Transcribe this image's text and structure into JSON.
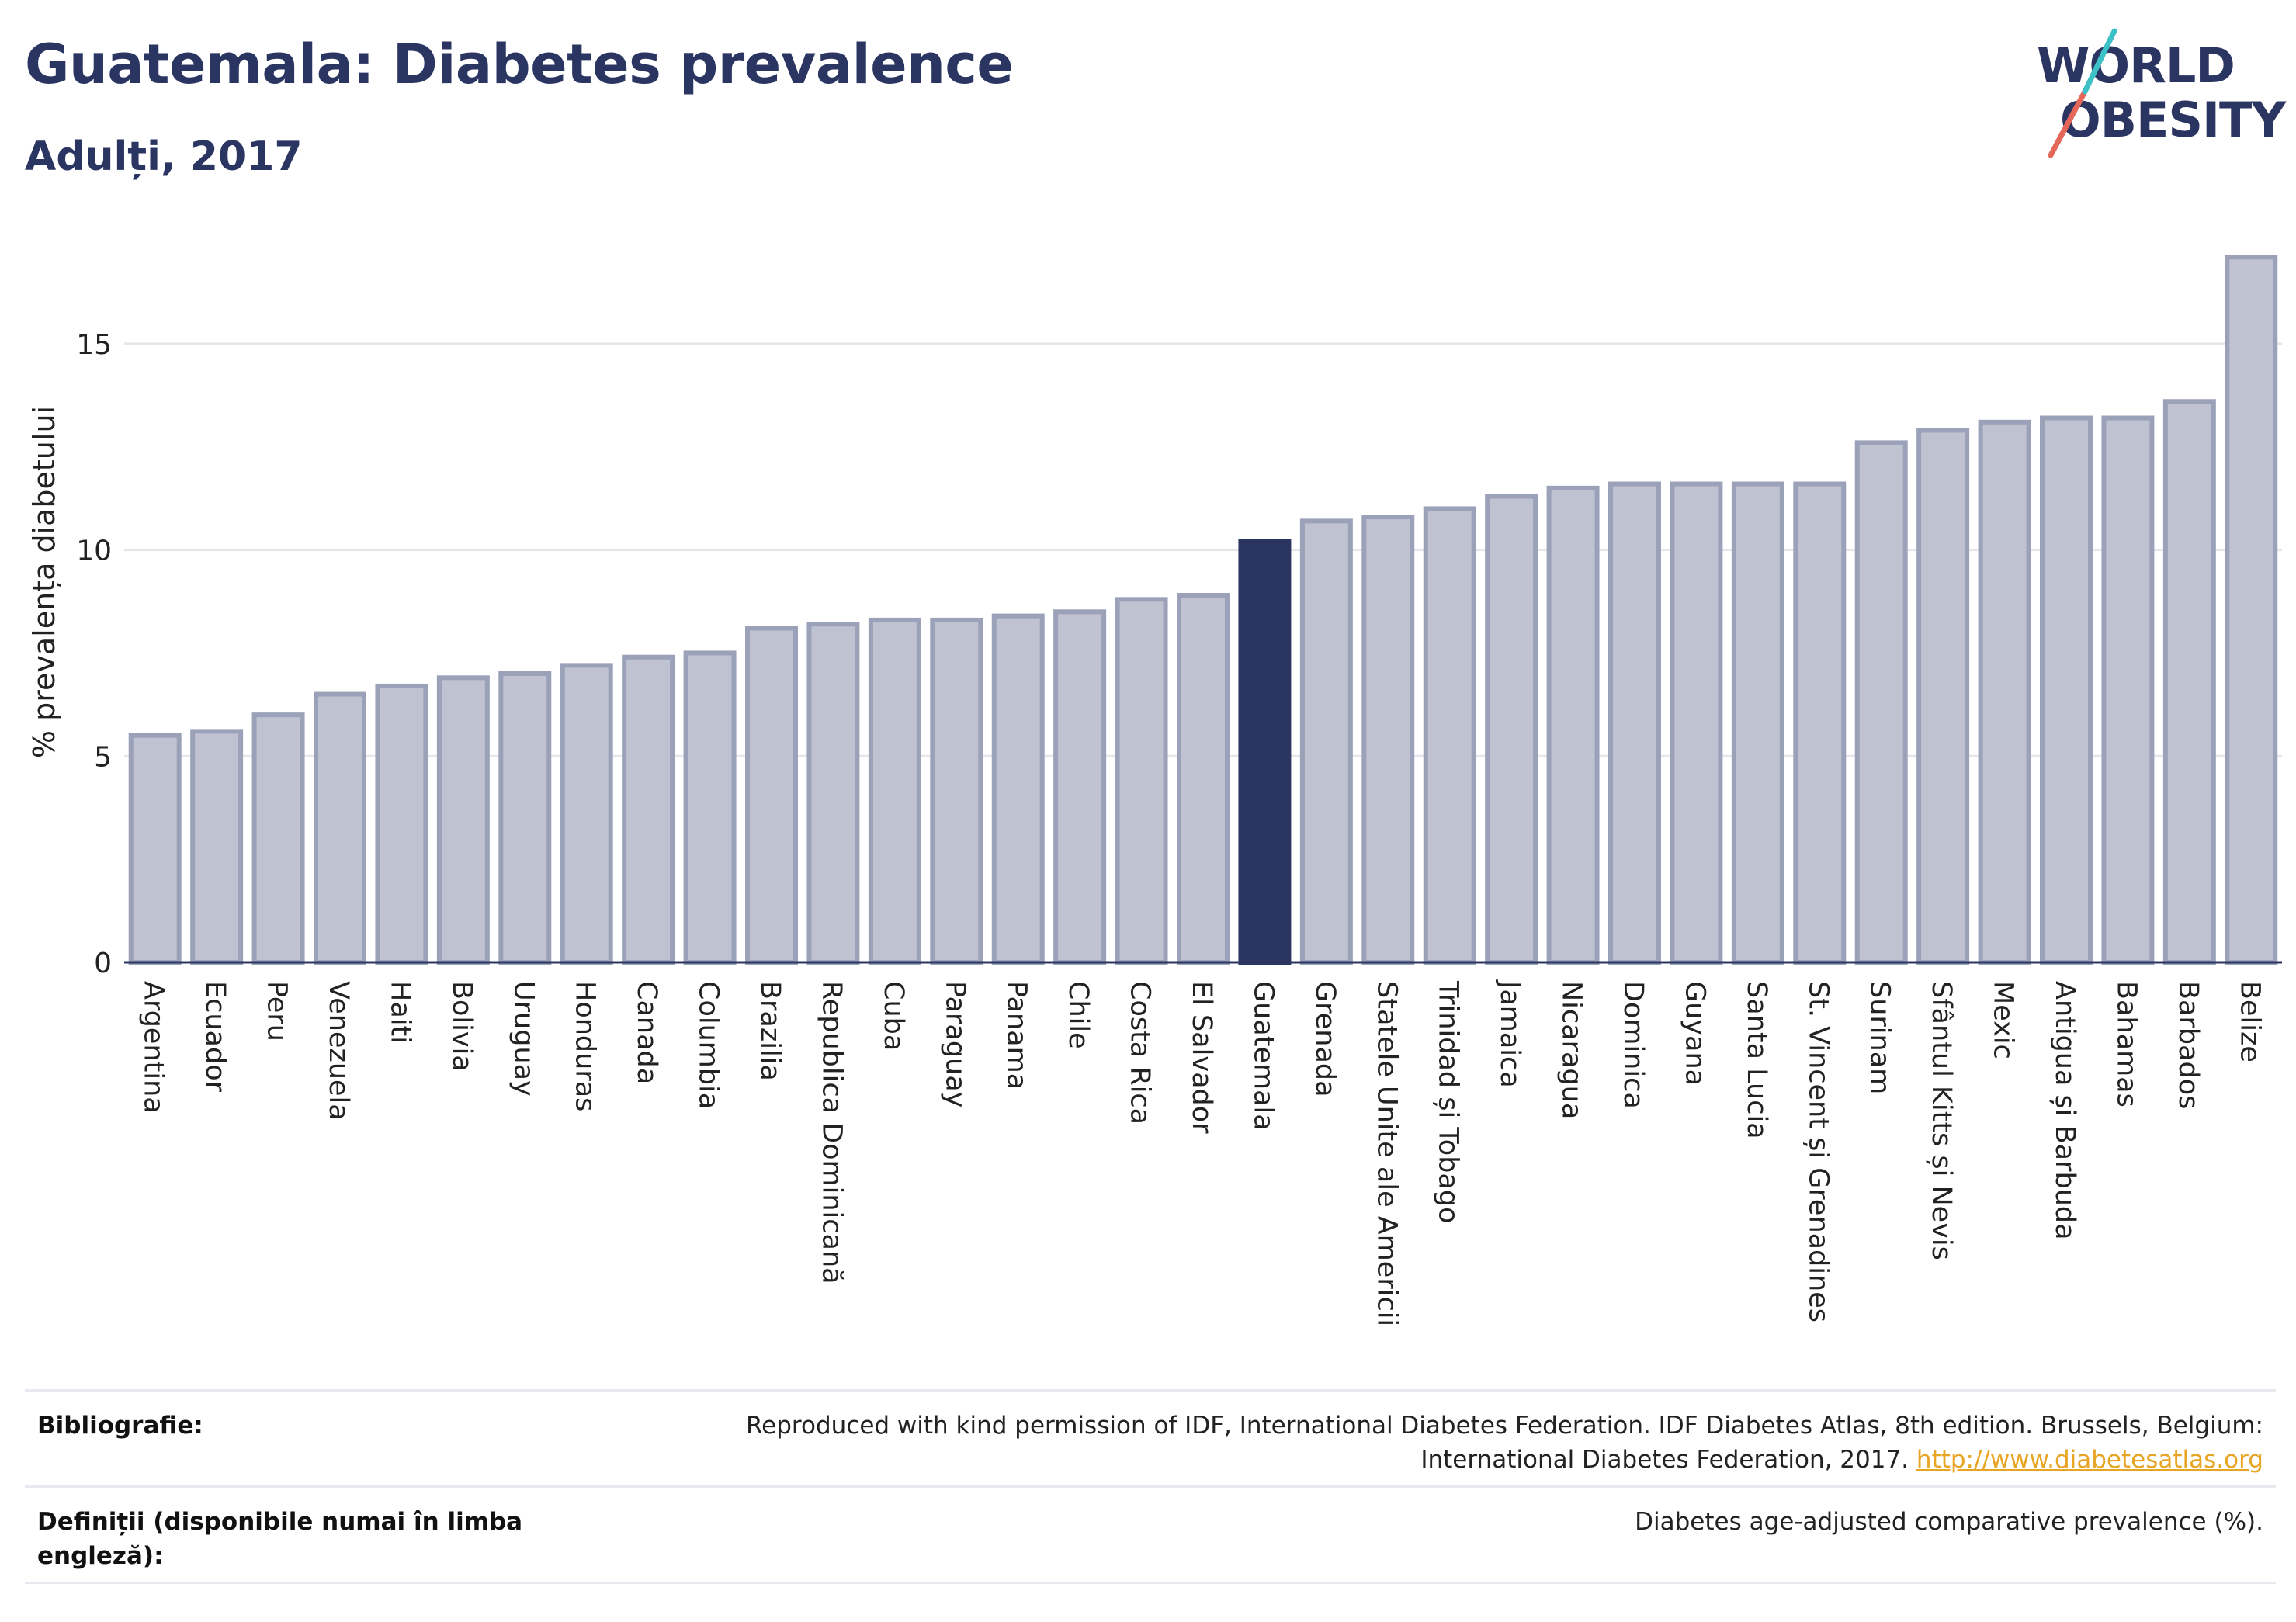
{
  "header": {
    "title": "Guatemala: Diabetes prevalence",
    "subtitle": "Adulți, 2017"
  },
  "logo": {
    "line1": "WORLD",
    "line2": "OBESITY",
    "accent_colors": [
      "#3cc1c6",
      "#e5675a"
    ]
  },
  "colors": {
    "bar": "#bfc3d1",
    "bar_border": "#9aa1b8",
    "highlight": "#2b3561",
    "grid": "#e6e6ea",
    "text": "#2b3561"
  },
  "chart_data": {
    "type": "bar",
    "title": "Guatemala: Diabetes prevalence",
    "subtitle": "Adulți, 2017",
    "ylabel": "% prevalența diabetului",
    "xlabel": "",
    "ylim": [
      0,
      17.5
    ],
    "yticks": [
      0,
      5,
      10,
      15
    ],
    "grid": true,
    "highlight": "Guatemala",
    "categories": [
      "Argentina",
      "Ecuador",
      "Peru",
      "Venezuela",
      "Haiti",
      "Bolivia",
      "Uruguay",
      "Honduras",
      "Canada",
      "Columbia",
      "Brazilia",
      "Republica Dominicană",
      "Cuba",
      "Paraguay",
      "Panama",
      "Chile",
      "Costa Rica",
      "El Salvador",
      "Guatemala",
      "Grenada",
      "Statele Unite ale Americii",
      "Trinidad și Tobago",
      "Jamaica",
      "Nicaragua",
      "Dominica",
      "Guyana",
      "Santa Lucia",
      "St. Vincent și Grenadines",
      "Surinam",
      "Sfântul Kitts și Nevis",
      "Mexic",
      "Antigua și Barbuda",
      "Bahamas",
      "Barbados",
      "Belize"
    ],
    "values": [
      5.5,
      5.6,
      6.0,
      6.5,
      6.7,
      6.9,
      7.0,
      7.2,
      7.4,
      7.5,
      8.1,
      8.2,
      8.3,
      8.3,
      8.4,
      8.5,
      8.8,
      8.9,
      10.2,
      10.7,
      10.8,
      11.0,
      11.3,
      11.5,
      11.6,
      11.6,
      11.6,
      11.6,
      12.6,
      12.9,
      13.1,
      13.2,
      13.2,
      13.6,
      17.1
    ]
  },
  "footer": {
    "bibliography_label": "Bibliografie:",
    "bibliography_text_1": "Reproduced with kind permission of IDF, International Diabetes Federation. IDF Diabetes Atlas, 8th edition. Brussels, Belgium:",
    "bibliography_text_2": "International Diabetes Federation, 2017.",
    "bibliography_link": "http://www.diabetesatlas.org",
    "definitions_label_1": "Definiții (disponibile numai în limba",
    "definitions_label_2": "engleză):",
    "definitions_text": "Diabetes age-adjusted comparative prevalence (%)."
  }
}
